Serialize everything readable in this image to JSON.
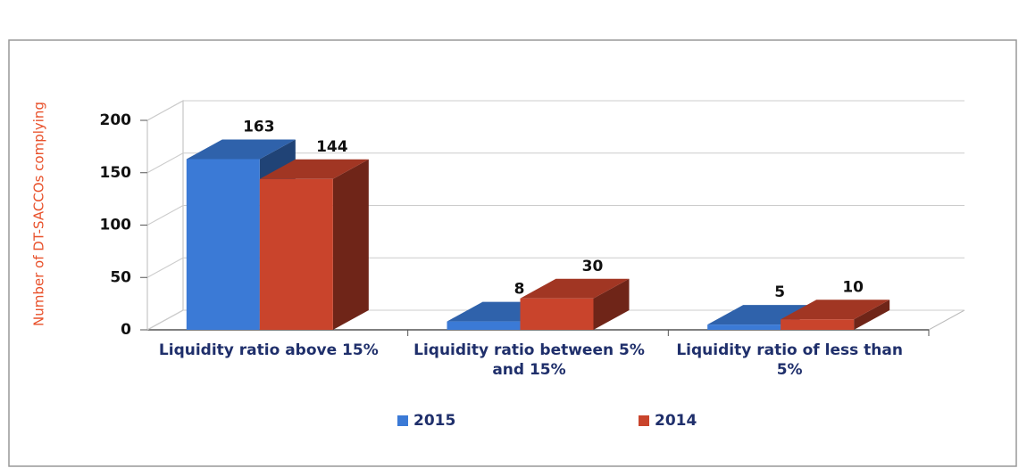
{
  "chart_data": {
    "type": "bar3d",
    "y_label": "Number of DT-SACCOs complying",
    "categories": [
      "Liquidity ratio above 15%",
      "Liquidity ratio between 5% and 15%",
      "Liquidity ratio of less than 5%"
    ],
    "series": [
      {
        "name": "2015",
        "color": "#3b7ad6",
        "values": [
          163,
          8,
          5
        ]
      },
      {
        "name": "2014",
        "color": "#c9442c",
        "values": [
          144,
          30,
          10
        ]
      }
    ],
    "ylim": [
      0,
      200
    ],
    "yticks": [
      0,
      50,
      100,
      150,
      200
    ],
    "grid": true
  }
}
